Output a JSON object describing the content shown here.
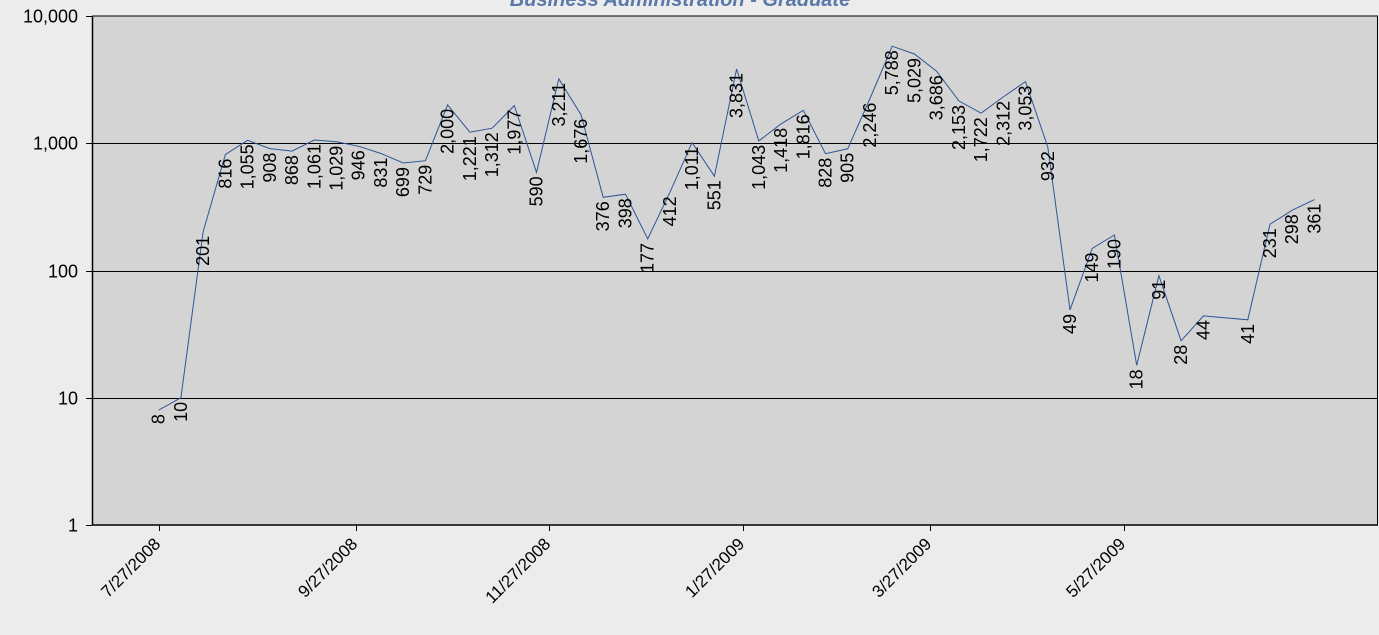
{
  "chart_data": {
    "type": "line",
    "title": "Business Administration - Graduate",
    "y_scale": "log",
    "ylim": [
      1,
      10000
    ],
    "y_ticks": [
      1,
      10,
      100,
      1000,
      10000
    ],
    "y_tick_labels": [
      "1",
      "10",
      "100",
      "1,000",
      "10,000"
    ],
    "xlim": [
      "2008-07-06",
      "2009-08-15"
    ],
    "x_ticks": [
      "2008-07-27",
      "2008-09-27",
      "2008-11-27",
      "2009-01-27",
      "2009-03-27",
      "2009-05-27"
    ],
    "x_tick_labels": [
      "7/27/2008",
      "9/27/2008",
      "11/27/2008",
      "1/27/2009",
      "3/27/2009",
      "5/27/2009"
    ],
    "grid": true,
    "series_color": "#2f5597",
    "plot_background": "#d4d4d4",
    "points": [
      {
        "x": "2008-07-27",
        "y": 8
      },
      {
        "x": "2008-08-03",
        "y": 10
      },
      {
        "x": "2008-08-10",
        "y": 201
      },
      {
        "x": "2008-08-17",
        "y": 816
      },
      {
        "x": "2008-08-24",
        "y": 1055
      },
      {
        "x": "2008-08-31",
        "y": 908
      },
      {
        "x": "2008-09-07",
        "y": 868
      },
      {
        "x": "2008-09-14",
        "y": 1061
      },
      {
        "x": "2008-09-21",
        "y": 1029
      },
      {
        "x": "2008-09-28",
        "y": 946
      },
      {
        "x": "2008-10-05",
        "y": 831
      },
      {
        "x": "2008-10-12",
        "y": 699
      },
      {
        "x": "2008-10-19",
        "y": 729
      },
      {
        "x": "2008-10-26",
        "y": 2000
      },
      {
        "x": "2008-11-02",
        "y": 1221
      },
      {
        "x": "2008-11-09",
        "y": 1312
      },
      {
        "x": "2008-11-16",
        "y": 1977
      },
      {
        "x": "2008-11-23",
        "y": 590
      },
      {
        "x": "2008-11-30",
        "y": 3211
      },
      {
        "x": "2008-12-07",
        "y": 1676
      },
      {
        "x": "2008-12-14",
        "y": 376
      },
      {
        "x": "2008-12-21",
        "y": 398
      },
      {
        "x": "2008-12-28",
        "y": 177
      },
      {
        "x": "2009-01-04",
        "y": 412
      },
      {
        "x": "2009-01-11",
        "y": 1011
      },
      {
        "x": "2009-01-18",
        "y": 551
      },
      {
        "x": "2009-01-25",
        "y": 3831
      },
      {
        "x": "2009-02-01",
        "y": 1043
      },
      {
        "x": "2009-02-08",
        "y": 1418
      },
      {
        "x": "2009-02-15",
        "y": 1816
      },
      {
        "x": "2009-02-22",
        "y": 828
      },
      {
        "x": "2009-03-01",
        "y": 905
      },
      {
        "x": "2009-03-08",
        "y": 2246
      },
      {
        "x": "2009-03-15",
        "y": 5788
      },
      {
        "x": "2009-03-22",
        "y": 5029
      },
      {
        "x": "2009-03-29",
        "y": 3686
      },
      {
        "x": "2009-04-05",
        "y": 2153
      },
      {
        "x": "2009-04-12",
        "y": 1722
      },
      {
        "x": "2009-04-19",
        "y": 2312
      },
      {
        "x": "2009-04-26",
        "y": 3053
      },
      {
        "x": "2009-05-03",
        "y": 932
      },
      {
        "x": "2009-05-10",
        "y": 49
      },
      {
        "x": "2009-05-17",
        "y": 149
      },
      {
        "x": "2009-05-24",
        "y": 190
      },
      {
        "x": "2009-05-31",
        "y": 18
      },
      {
        "x": "2009-06-07",
        "y": 91
      },
      {
        "x": "2009-06-14",
        "y": 28
      },
      {
        "x": "2009-06-21",
        "y": 44
      },
      {
        "x": "2009-07-05",
        "y": 41
      },
      {
        "x": "2009-07-12",
        "y": 231
      },
      {
        "x": "2009-07-19",
        "y": 298
      },
      {
        "x": "2009-07-26",
        "y": 361
      }
    ],
    "data_labels": [
      "8",
      "10",
      "201",
      "816",
      "1,055",
      "908",
      "868",
      "1,061",
      "1,029",
      "946",
      "831",
      "699",
      "729",
      "2,000",
      "1,221",
      "1,312",
      "1,977",
      "590",
      "3,211",
      "1,676",
      "376",
      "398",
      "177",
      "412",
      "1,011",
      "551",
      "3,831",
      "1,043",
      "1,418",
      "1,816",
      "828",
      "905",
      "2,246",
      "5,788",
      "5,029",
      "3,686",
      "2,153",
      "1,722",
      "2,312",
      "3,053",
      "932",
      "49",
      "149",
      "190",
      "18",
      "91",
      "28",
      "44",
      "41",
      "231",
      "298",
      "361"
    ]
  }
}
